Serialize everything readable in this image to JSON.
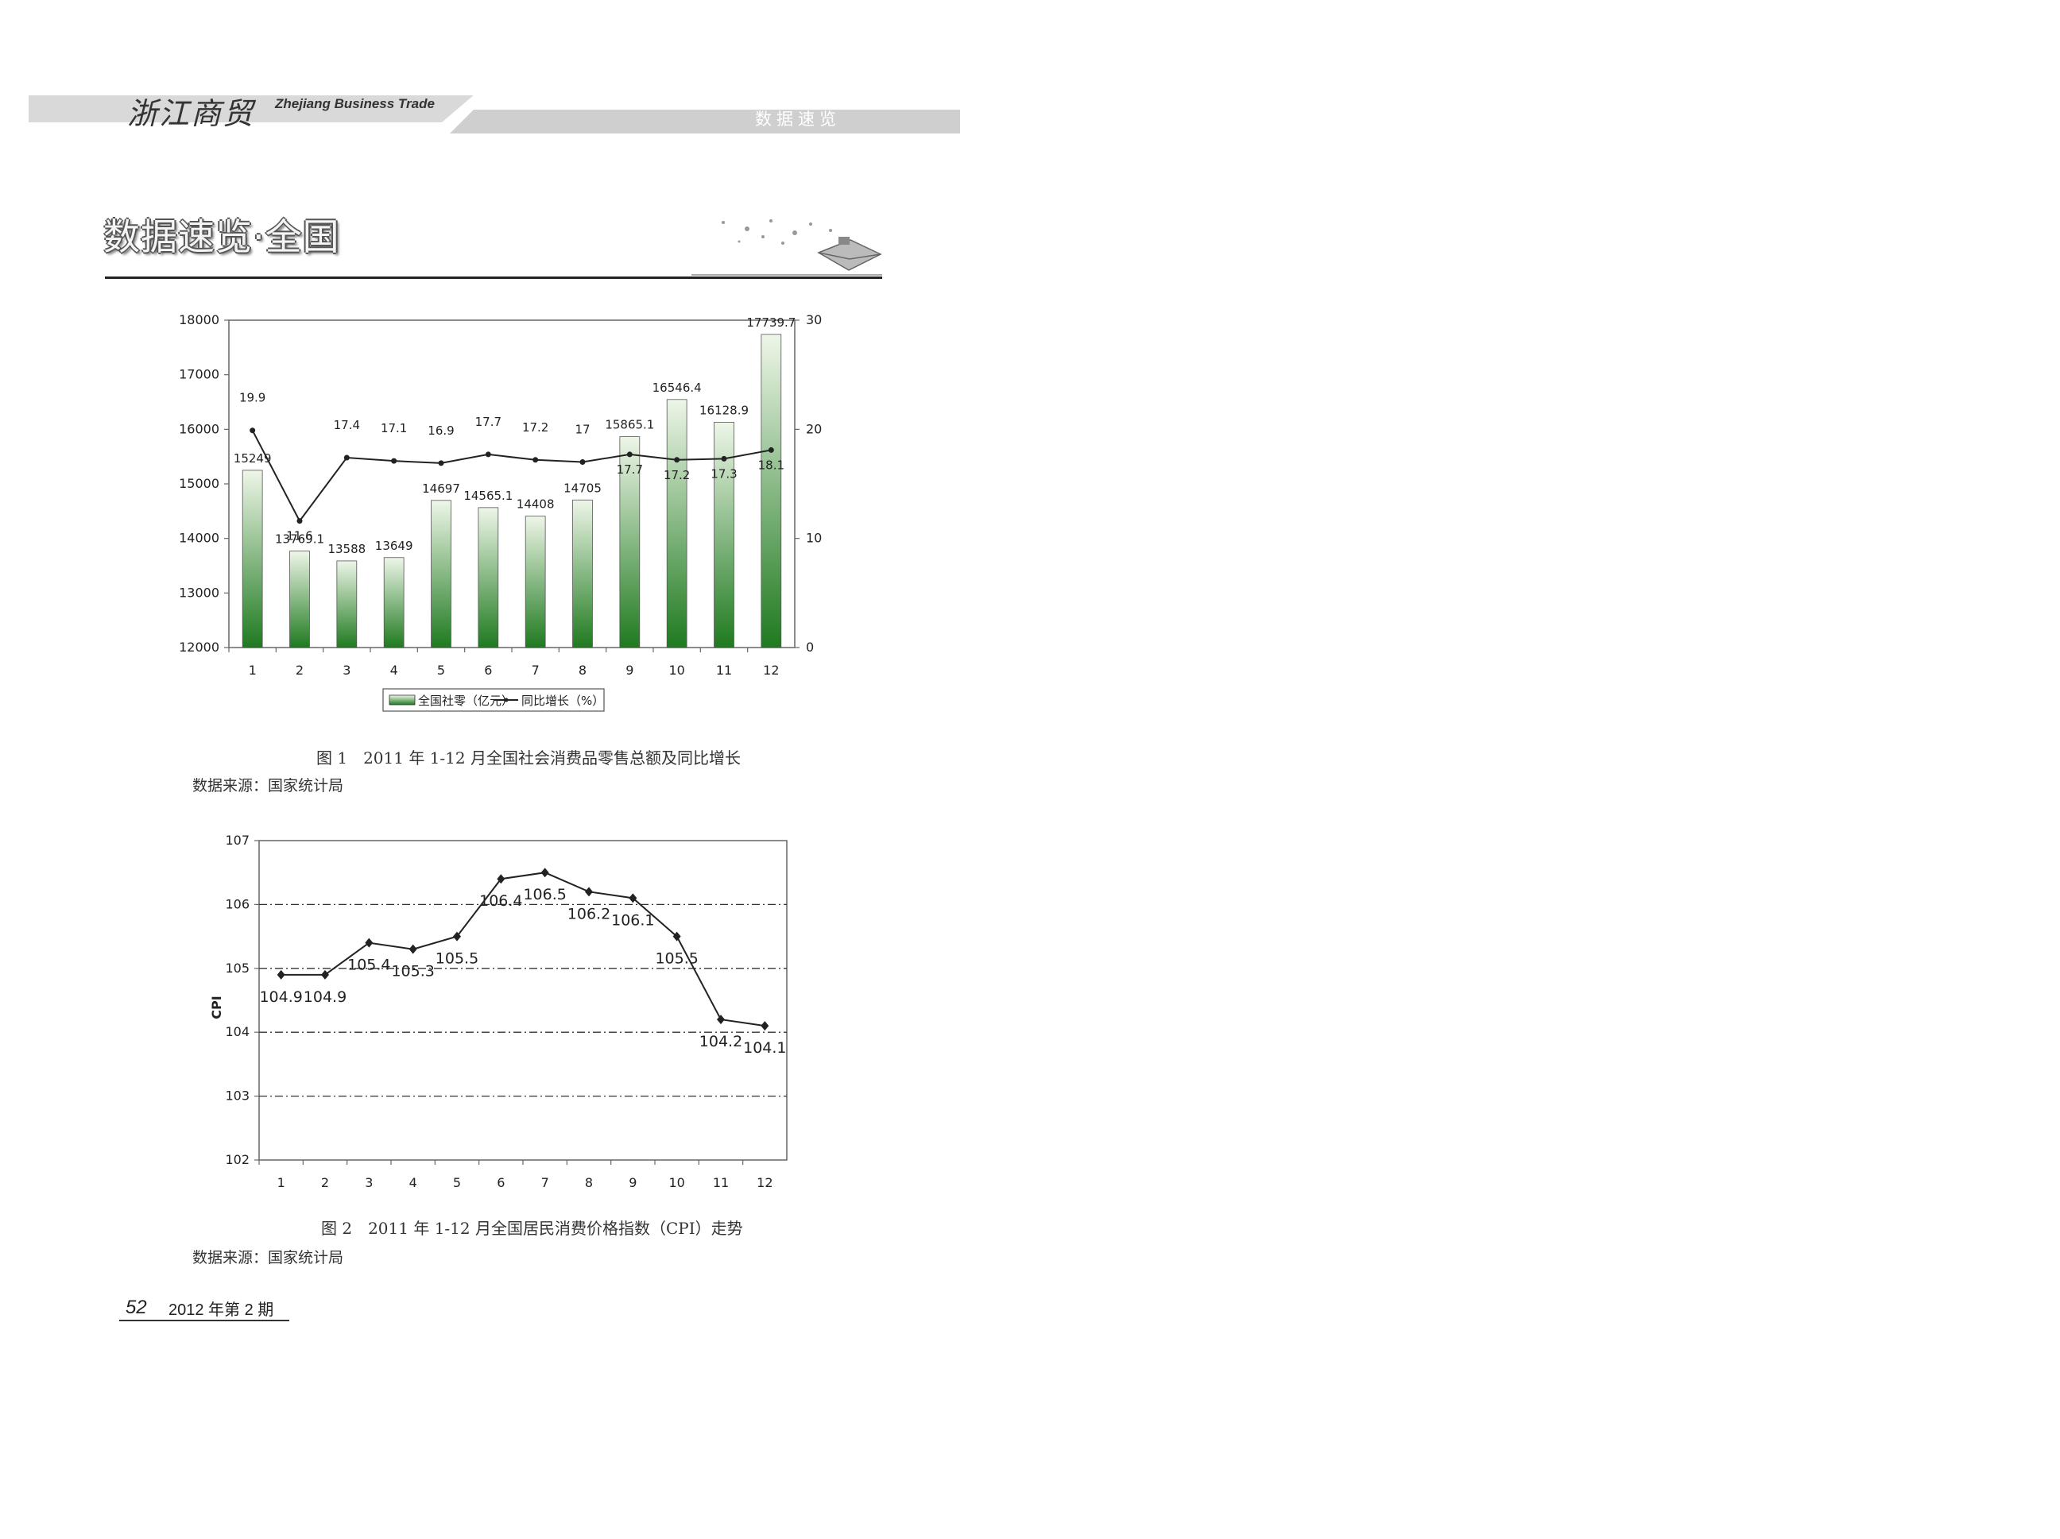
{
  "header": {
    "brand_script": "浙江商贸",
    "brand_en": "Zhejiang Business Trade",
    "section_tag": "数据速览"
  },
  "page_title": "数据速览·全国",
  "figure1": {
    "caption": "图 1　2011 年 1-12 月全国社会消费品零售总额及同比增长",
    "source": "数据来源：国家统计局"
  },
  "figure2": {
    "caption": "图 2　2011 年 1-12 月全国居民消费价格指数（CPI）走势",
    "source": "数据来源：国家统计局"
  },
  "footer": {
    "page_number": "52",
    "issue": "2012 年第 2 期"
  },
  "colors": {
    "bar_top": "#eef6e8",
    "bar_bottom": "#1f7a1f",
    "line": "#222222",
    "header_band": "#d4d4d4"
  },
  "chart_data": [
    {
      "type": "bar",
      "categories": [
        "1",
        "2",
        "3",
        "4",
        "5",
        "6",
        "7",
        "8",
        "9",
        "10",
        "11",
        "12"
      ],
      "series": [
        {
          "name": "全国社零（亿元）",
          "type": "bar",
          "axis": "left",
          "values": [
            15249,
            13769.1,
            13588,
            13649,
            14697,
            14565.1,
            14408,
            14705,
            15865.1,
            16546.4,
            16128.9,
            17739.7
          ],
          "labels": [
            "15249",
            "13769.1",
            "13588",
            "13649",
            "14697",
            "14565.1",
            "14408",
            "14705",
            "15865.1",
            "16546.4",
            "16128.9",
            "17739.7"
          ]
        },
        {
          "name": "同比增长（%）",
          "type": "line",
          "axis": "right",
          "values": [
            19.9,
            11.6,
            17.4,
            17.1,
            16.9,
            17.7,
            17.2,
            17,
            17.7,
            17.2,
            17.3,
            18.1
          ],
          "labels": [
            "19.9",
            "11.6",
            "17.4",
            "17.1",
            "16.9",
            "17.7",
            "17.2",
            "17",
            "17.7",
            "17.2",
            "17.3",
            "18.1"
          ]
        }
      ],
      "ylim": [
        12000,
        18000
      ],
      "yticks": [
        "12000",
        "13000",
        "14000",
        "15000",
        "16000",
        "17000",
        "18000"
      ],
      "y2lim": [
        0,
        30
      ],
      "y2ticks": [
        "0",
        "10",
        "20",
        "30"
      ],
      "legend_position": "bottom",
      "grid": false
    },
    {
      "type": "line",
      "categories": [
        "1",
        "2",
        "3",
        "4",
        "5",
        "6",
        "7",
        "8",
        "9",
        "10",
        "11",
        "12"
      ],
      "series": [
        {
          "values": [
            104.9,
            104.9,
            105.4,
            105.3,
            105.5,
            106.4,
            106.5,
            106.2,
            106.1,
            105.5,
            104.2,
            104.1
          ],
          "labels": [
            "104.9",
            "104.9",
            "105.4",
            "105.3",
            "105.5",
            "106.4",
            "106.5",
            "106.2",
            "106.1",
            "105.5",
            "104.2",
            "104.1"
          ]
        }
      ],
      "ylabel": "CPI",
      "ylim": [
        102,
        107
      ],
      "yticks": [
        "102",
        "103",
        "104",
        "105",
        "106",
        "107"
      ],
      "grid": true
    }
  ]
}
